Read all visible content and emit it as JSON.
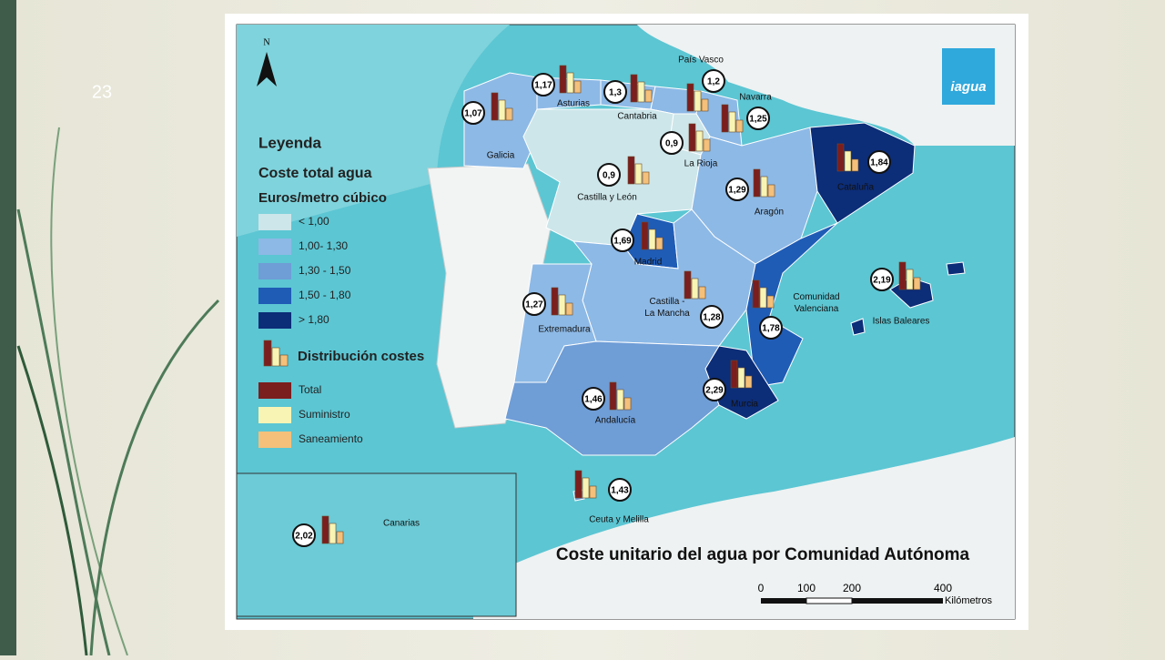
{
  "slide_number": "23",
  "map": {
    "title": "Coste unitario del agua por Comunidad Autónoma",
    "north": "N",
    "logo": "iagua",
    "legend": {
      "title": "Leyenda",
      "subtitle": "Coste total agua",
      "unit": "Euros/metro cúbico",
      "classes": [
        {
          "label": "< 1,00",
          "color": "#cde6ea"
        },
        {
          "label": "1,00- 1,30",
          "color": "#8db9e6"
        },
        {
          "label": "1,30 - 1,50",
          "color": "#6f9dd6"
        },
        {
          "label": "1,50 - 1,80",
          "color": "#1f5cb6"
        },
        {
          "label": "> 1,80",
          "color": "#0c2d78"
        }
      ],
      "chart_title": "Distribución costes",
      "series": [
        {
          "name": "Total",
          "color": "#7b1e1e"
        },
        {
          "name": "Suministro",
          "color": "#f8f4b4"
        },
        {
          "name": "Saneamiento",
          "color": "#f4c07a"
        }
      ]
    },
    "regions": [
      {
        "name": [
          "Galicia"
        ],
        "value": "1,07"
      },
      {
        "name": [
          "Asturias"
        ],
        "value": "1,17"
      },
      {
        "name": [
          "Cantabria"
        ],
        "value": "1,3"
      },
      {
        "name": [
          "País Vasco"
        ],
        "value": "1,2"
      },
      {
        "name": [
          "Navarra"
        ],
        "value": "1,25"
      },
      {
        "name": [
          "La Rioja"
        ],
        "value": "0,9"
      },
      {
        "name": [
          "Castilla y León"
        ],
        "value": "0,9"
      },
      {
        "name": [
          "Aragón"
        ],
        "value": "1,29"
      },
      {
        "name": [
          "Cataluña"
        ],
        "value": "1,84"
      },
      {
        "name": [
          "Madrid"
        ],
        "value": "1,69"
      },
      {
        "name": [
          "Castilla -",
          "La Mancha"
        ],
        "value": "1,28"
      },
      {
        "name": [
          "Extremadura"
        ],
        "value": "1,27"
      },
      {
        "name": [
          "Comunidad",
          "Valenciana"
        ],
        "value": "1,78"
      },
      {
        "name": [
          "Islas Baleares"
        ],
        "value": "2,19"
      },
      {
        "name": [
          "Murcia"
        ],
        "value": "2,29"
      },
      {
        "name": [
          "Andalucía"
        ],
        "value": "1,46"
      },
      {
        "name": [
          "Ceuta y Melilla"
        ],
        "value": "1,43"
      },
      {
        "name": [
          "Canarias"
        ],
        "value": "2,02"
      }
    ],
    "scale": {
      "ticks": [
        "0",
        "100",
        "200",
        "400"
      ],
      "unit": "Kilómetros"
    }
  }
}
